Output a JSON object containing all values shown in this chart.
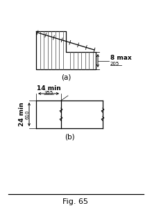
{
  "fig_label": "Fig. 65",
  "label_a": "(a)",
  "label_b": "(b)",
  "annotation_8max": "8 max",
  "annotation_205": "205",
  "annotation_14min": "14 min",
  "annotation_355": "355",
  "annotation_24min": "24 min",
  "annotation_610": "610",
  "line_color": "#000000",
  "bg_color": "#ffffff",
  "hatch_color": "#555555"
}
